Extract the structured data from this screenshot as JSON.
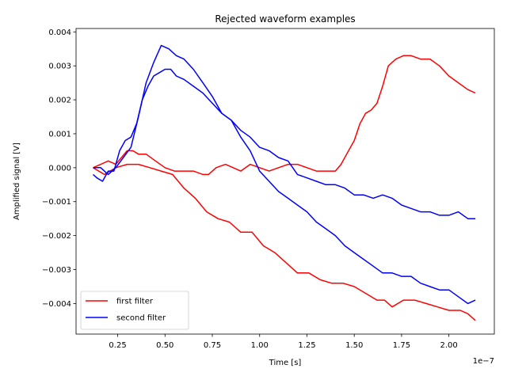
{
  "chart_data": {
    "type": "line",
    "title": "Rejected waveform examples",
    "xlabel": "Time [s]",
    "ylabel": "Amplified signal [V]",
    "x_scale_label": "1e−7",
    "xlim": [
      0.03,
      2.24
    ],
    "ylim": [
      -0.0049,
      0.0041
    ],
    "x_ticks": [
      0.25,
      0.5,
      0.75,
      1.0,
      1.25,
      1.5,
      1.75,
      2.0
    ],
    "x_tick_labels": [
      "0.25",
      "0.50",
      "0.75",
      "1.00",
      "1.25",
      "1.50",
      "1.75",
      "2.00"
    ],
    "y_ticks": [
      -0.004,
      -0.003,
      -0.002,
      -0.001,
      0.0,
      0.001,
      0.002,
      0.003,
      0.004
    ],
    "y_tick_labels": [
      "−0.004",
      "−0.003",
      "−0.002",
      "−0.001",
      "0.000",
      "0.001",
      "0.002",
      "0.003",
      "0.004"
    ],
    "grid": false,
    "legend_position": "lower-left",
    "legend": [
      {
        "name": "first filter",
        "color": "#ff0000"
      },
      {
        "name": "second filter",
        "color": "#0000ff"
      }
    ],
    "series": [
      {
        "name": "first filter",
        "color": "#ff0000",
        "x": [
          0.12,
          0.16,
          0.2,
          0.24,
          0.27,
          0.3,
          0.33,
          0.36,
          0.4,
          0.45,
          0.5,
          0.55,
          0.6,
          0.65,
          0.7,
          0.73,
          0.77,
          0.82,
          0.86,
          0.9,
          0.95,
          1.0,
          1.05,
          1.1,
          1.15,
          1.2,
          1.25,
          1.3,
          1.35,
          1.4,
          1.43,
          1.46,
          1.5,
          1.53,
          1.56,
          1.59,
          1.62,
          1.65,
          1.68,
          1.72,
          1.76,
          1.8,
          1.85,
          1.9,
          1.95,
          2.0,
          2.05,
          2.1,
          2.14
        ],
        "values": [
          0.0,
          0.0001,
          0.0002,
          0.0001,
          0.0003,
          0.0005,
          0.0005,
          0.0004,
          0.0004,
          0.0002,
          0.0,
          -0.0001,
          -0.0001,
          -0.0001,
          -0.0002,
          -0.0002,
          0.0,
          0.0001,
          0.0,
          -0.0001,
          0.0001,
          0.0,
          -0.0001,
          0.0,
          0.0001,
          0.0001,
          0.0,
          -0.0001,
          -0.0001,
          -0.0001,
          0.0001,
          0.0004,
          0.0008,
          0.0013,
          0.0016,
          0.0017,
          0.0019,
          0.0024,
          0.003,
          0.0032,
          0.0033,
          0.0033,
          0.0032,
          0.0032,
          0.003,
          0.0027,
          0.0025,
          0.0023,
          0.0022
        ]
      },
      {
        "name": "first filter",
        "color": "#ff0000",
        "x": [
          0.12,
          0.18,
          0.24,
          0.3,
          0.36,
          0.42,
          0.48,
          0.54,
          0.6,
          0.66,
          0.72,
          0.78,
          0.84,
          0.9,
          0.96,
          1.02,
          1.08,
          1.14,
          1.2,
          1.26,
          1.32,
          1.38,
          1.44,
          1.5,
          1.56,
          1.62,
          1.66,
          1.7,
          1.76,
          1.82,
          1.88,
          1.94,
          2.0,
          2.06,
          2.1,
          2.14
        ],
        "values": [
          0.0,
          -0.0002,
          0.0,
          0.0001,
          0.0001,
          0.0,
          -0.0001,
          -0.0002,
          -0.0006,
          -0.0009,
          -0.0013,
          -0.0015,
          -0.0016,
          -0.0019,
          -0.0019,
          -0.0023,
          -0.0025,
          -0.0028,
          -0.0031,
          -0.0031,
          -0.0033,
          -0.0034,
          -0.0034,
          -0.0035,
          -0.0037,
          -0.0039,
          -0.0039,
          -0.0041,
          -0.0039,
          -0.0039,
          -0.004,
          -0.0041,
          -0.0042,
          -0.0042,
          -0.0043,
          -0.0045
        ]
      },
      {
        "name": "second filter",
        "color": "#0000ff",
        "x": [
          0.12,
          0.14,
          0.17,
          0.2,
          0.23,
          0.26,
          0.29,
          0.32,
          0.35,
          0.38,
          0.41,
          0.44,
          0.47,
          0.5,
          0.53,
          0.56,
          0.6,
          0.65,
          0.7,
          0.75,
          0.8,
          0.85,
          0.9,
          0.95,
          1.0,
          1.05,
          1.1,
          1.15,
          1.2,
          1.25,
          1.3,
          1.35,
          1.4,
          1.45,
          1.5,
          1.55,
          1.6,
          1.65,
          1.7,
          1.75,
          1.8,
          1.85,
          1.9,
          1.95,
          2.0,
          2.05,
          2.1,
          2.14
        ],
        "values": [
          -0.0002,
          -0.0003,
          -0.0004,
          -0.0001,
          -0.0001,
          0.0005,
          0.0008,
          0.0009,
          0.0013,
          0.002,
          0.0024,
          0.0027,
          0.0028,
          0.0029,
          0.0029,
          0.0027,
          0.0026,
          0.0024,
          0.0022,
          0.0019,
          0.0016,
          0.0014,
          0.0011,
          0.0009,
          0.0006,
          0.0005,
          0.0003,
          0.0002,
          -0.0002,
          -0.0003,
          -0.0004,
          -0.0005,
          -0.0005,
          -0.0006,
          -0.0008,
          -0.0008,
          -0.0009,
          -0.0008,
          -0.0009,
          -0.0011,
          -0.0012,
          -0.0013,
          -0.0013,
          -0.0014,
          -0.0014,
          -0.0013,
          -0.0015,
          -0.0015
        ]
      },
      {
        "name": "second filter",
        "color": "#0000ff",
        "x": [
          0.12,
          0.16,
          0.2,
          0.24,
          0.28,
          0.32,
          0.36,
          0.4,
          0.44,
          0.48,
          0.52,
          0.56,
          0.6,
          0.65,
          0.7,
          0.75,
          0.8,
          0.85,
          0.9,
          0.95,
          1.0,
          1.05,
          1.1,
          1.15,
          1.2,
          1.25,
          1.3,
          1.35,
          1.4,
          1.45,
          1.5,
          1.55,
          1.6,
          1.65,
          1.7,
          1.75,
          1.8,
          1.85,
          1.9,
          1.95,
          2.0,
          2.05,
          2.1,
          2.14
        ],
        "values": [
          0.0,
          0.0,
          -0.0002,
          0.0,
          0.0003,
          0.0006,
          0.0015,
          0.0025,
          0.0031,
          0.0036,
          0.0035,
          0.0033,
          0.0032,
          0.0029,
          0.0025,
          0.0021,
          0.0016,
          0.0014,
          0.0009,
          0.0005,
          -0.0001,
          -0.0004,
          -0.0007,
          -0.0009,
          -0.0011,
          -0.0013,
          -0.0016,
          -0.0018,
          -0.002,
          -0.0023,
          -0.0025,
          -0.0027,
          -0.0029,
          -0.0031,
          -0.0031,
          -0.0032,
          -0.0032,
          -0.0034,
          -0.0035,
          -0.0036,
          -0.0036,
          -0.0038,
          -0.004,
          -0.0039
        ]
      }
    ]
  }
}
